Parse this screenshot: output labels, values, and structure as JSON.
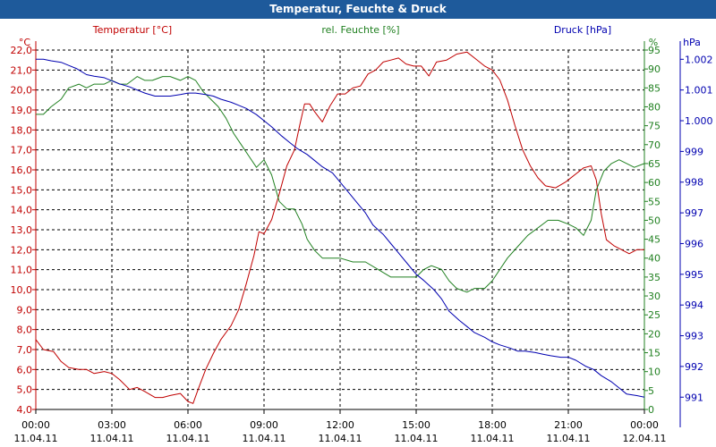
{
  "window": {
    "title": "Temperatur, Feuchte & Druck"
  },
  "colors": {
    "temp": "#c00000",
    "hum": "#208020",
    "press": "#0000b0",
    "grid": "#000000",
    "axis_text": "#000000"
  },
  "chart_data": {
    "type": "line",
    "title": "Temperatur, Feuchte & Druck",
    "x_ticks": [
      {
        "h": 0,
        "time": "00:00",
        "date": "11.04.11"
      },
      {
        "h": 3,
        "time": "03:00",
        "date": "11.04.11"
      },
      {
        "h": 6,
        "time": "06:00",
        "date": "11.04.11"
      },
      {
        "h": 9,
        "time": "09:00",
        "date": "11.04.11"
      },
      {
        "h": 12,
        "time": "12:00",
        "date": "11.04.11"
      },
      {
        "h": 15,
        "time": "15:00",
        "date": "11.04.11"
      },
      {
        "h": 18,
        "time": "18:00",
        "date": "11.04.11"
      },
      {
        "h": 21,
        "time": "21:00",
        "date": "11.04.11"
      },
      {
        "h": 24,
        "time": "00:00",
        "date": "12.04.11"
      }
    ],
    "axes": {
      "temp": {
        "label": "Temperatur [°C]",
        "unit": "°C",
        "min": 4.0,
        "max": 22.0,
        "ticks": [
          "4,0",
          "5,0",
          "6,0",
          "7,0",
          "8,0",
          "9,0",
          "10,0",
          "11,0",
          "12,0",
          "13,0",
          "14,0",
          "15,0",
          "16,0",
          "17,0",
          "18,0",
          "19,0",
          "20,0",
          "21,0",
          "22,0"
        ]
      },
      "hum": {
        "label": "rel. Feuchte [%]",
        "unit": "%",
        "min": 0,
        "max": 95,
        "ticks": [
          "0",
          "5",
          "10",
          "15",
          "20",
          "25",
          "30",
          "35",
          "40",
          "45",
          "50",
          "55",
          "60",
          "65",
          "70",
          "75",
          "80",
          "85",
          "90",
          "95"
        ]
      },
      "press": {
        "label": "Druck [hPa]",
        "unit": "hPa",
        "min": 990.6,
        "max": 1002.3,
        "ticks": [
          "991",
          "992",
          "993",
          "994",
          "995",
          "996",
          "997",
          "998",
          "999",
          "1.000",
          "1.001",
          "1.002"
        ]
      }
    },
    "series": [
      {
        "name": "Temperatur",
        "axis": "temp",
        "points": [
          [
            0,
            7.5
          ],
          [
            0.3,
            7.0
          ],
          [
            0.7,
            6.9
          ],
          [
            1.0,
            6.4
          ],
          [
            1.3,
            6.1
          ],
          [
            1.7,
            6.0
          ],
          [
            2.0,
            6.0
          ],
          [
            2.3,
            5.8
          ],
          [
            2.7,
            5.9
          ],
          [
            3.0,
            5.8
          ],
          [
            3.3,
            5.5
          ],
          [
            3.7,
            5.0
          ],
          [
            4.0,
            5.1
          ],
          [
            4.3,
            4.9
          ],
          [
            4.7,
            4.6
          ],
          [
            5.0,
            4.6
          ],
          [
            5.3,
            4.7
          ],
          [
            5.7,
            4.8
          ],
          [
            6.0,
            4.4
          ],
          [
            6.2,
            4.3
          ],
          [
            6.4,
            5.0
          ],
          [
            6.7,
            6.0
          ],
          [
            7.0,
            6.8
          ],
          [
            7.3,
            7.5
          ],
          [
            7.7,
            8.2
          ],
          [
            8.0,
            9.0
          ],
          [
            8.3,
            10.3
          ],
          [
            8.6,
            11.7
          ],
          [
            8.8,
            12.9
          ],
          [
            9.0,
            12.8
          ],
          [
            9.3,
            13.5
          ],
          [
            9.6,
            14.8
          ],
          [
            9.9,
            16.2
          ],
          [
            10.2,
            17.0
          ],
          [
            10.4,
            18.2
          ],
          [
            10.6,
            19.3
          ],
          [
            10.8,
            19.3
          ],
          [
            11.0,
            18.9
          ],
          [
            11.3,
            18.4
          ],
          [
            11.6,
            19.2
          ],
          [
            11.9,
            19.8
          ],
          [
            12.2,
            19.8
          ],
          [
            12.5,
            20.1
          ],
          [
            12.8,
            20.2
          ],
          [
            13.1,
            20.8
          ],
          [
            13.4,
            21.0
          ],
          [
            13.7,
            21.4
          ],
          [
            14.0,
            21.5
          ],
          [
            14.3,
            21.6
          ],
          [
            14.6,
            21.3
          ],
          [
            14.9,
            21.2
          ],
          [
            15.2,
            21.2
          ],
          [
            15.5,
            20.7
          ],
          [
            15.8,
            21.4
          ],
          [
            16.2,
            21.5
          ],
          [
            16.6,
            21.8
          ],
          [
            17.0,
            21.9
          ],
          [
            17.3,
            21.6
          ],
          [
            17.7,
            21.2
          ],
          [
            18.0,
            21.0
          ],
          [
            18.3,
            20.5
          ],
          [
            18.6,
            19.5
          ],
          [
            18.9,
            18.2
          ],
          [
            19.2,
            17.0
          ],
          [
            19.5,
            16.2
          ],
          [
            19.8,
            15.6
          ],
          [
            20.1,
            15.2
          ],
          [
            20.5,
            15.1
          ],
          [
            20.9,
            15.4
          ],
          [
            21.3,
            15.8
          ],
          [
            21.6,
            16.1
          ],
          [
            21.9,
            16.2
          ],
          [
            22.1,
            15.5
          ],
          [
            22.3,
            13.8
          ],
          [
            22.5,
            12.5
          ],
          [
            22.8,
            12.2
          ],
          [
            23.1,
            12.0
          ],
          [
            23.4,
            11.8
          ],
          [
            23.7,
            12.0
          ],
          [
            24.0,
            12.0
          ]
        ]
      },
      {
        "name": "rel. Feuchte",
        "axis": "hum",
        "points": [
          [
            0,
            78
          ],
          [
            0.3,
            78
          ],
          [
            0.6,
            80
          ],
          [
            1.0,
            82
          ],
          [
            1.3,
            85
          ],
          [
            1.7,
            86
          ],
          [
            2.0,
            85
          ],
          [
            2.3,
            86
          ],
          [
            2.7,
            86
          ],
          [
            3.0,
            87
          ],
          [
            3.3,
            86
          ],
          [
            3.6,
            86
          ],
          [
            4.0,
            88
          ],
          [
            4.3,
            87
          ],
          [
            4.6,
            87
          ],
          [
            5.0,
            88
          ],
          [
            5.3,
            88
          ],
          [
            5.7,
            87
          ],
          [
            6.0,
            88
          ],
          [
            6.3,
            87
          ],
          [
            6.6,
            84
          ],
          [
            6.9,
            82
          ],
          [
            7.2,
            80
          ],
          [
            7.5,
            77
          ],
          [
            7.8,
            73
          ],
          [
            8.1,
            70
          ],
          [
            8.4,
            67
          ],
          [
            8.7,
            64
          ],
          [
            9.0,
            66
          ],
          [
            9.3,
            62
          ],
          [
            9.6,
            55
          ],
          [
            9.9,
            53
          ],
          [
            10.2,
            53
          ],
          [
            10.5,
            49
          ],
          [
            10.7,
            45
          ],
          [
            11.0,
            42
          ],
          [
            11.3,
            40
          ],
          [
            11.6,
            40
          ],
          [
            12.0,
            40
          ],
          [
            12.5,
            39
          ],
          [
            13.0,
            39
          ],
          [
            13.5,
            37
          ],
          [
            14.0,
            35
          ],
          [
            14.5,
            35
          ],
          [
            15.0,
            35
          ],
          [
            15.3,
            37
          ],
          [
            15.6,
            38
          ],
          [
            16.0,
            37
          ],
          [
            16.3,
            34
          ],
          [
            16.6,
            32
          ],
          [
            17.0,
            31
          ],
          [
            17.3,
            32
          ],
          [
            17.7,
            32
          ],
          [
            18.0,
            34
          ],
          [
            18.3,
            37
          ],
          [
            18.6,
            40
          ],
          [
            19.0,
            43
          ],
          [
            19.4,
            46
          ],
          [
            19.8,
            48
          ],
          [
            20.2,
            50
          ],
          [
            20.6,
            50
          ],
          [
            21.0,
            49
          ],
          [
            21.3,
            48
          ],
          [
            21.6,
            46
          ],
          [
            21.9,
            50
          ],
          [
            22.1,
            58
          ],
          [
            22.4,
            63
          ],
          [
            22.7,
            65
          ],
          [
            23.0,
            66
          ],
          [
            23.3,
            65
          ],
          [
            23.6,
            64
          ],
          [
            24.0,
            65
          ]
        ]
      },
      {
        "name": "Druck",
        "axis": "press",
        "points": [
          [
            0,
            1002.0
          ],
          [
            0.3,
            1002.0
          ],
          [
            0.6,
            1001.95
          ],
          [
            1.0,
            1001.9
          ],
          [
            1.3,
            1001.8
          ],
          [
            1.6,
            1001.7
          ],
          [
            2.0,
            1001.5
          ],
          [
            2.3,
            1001.45
          ],
          [
            2.7,
            1001.4
          ],
          [
            3.0,
            1001.3
          ],
          [
            3.3,
            1001.2
          ],
          [
            3.7,
            1001.1
          ],
          [
            4.0,
            1001.0
          ],
          [
            4.3,
            1000.9
          ],
          [
            4.7,
            1000.8
          ],
          [
            5.0,
            1000.8
          ],
          [
            5.3,
            1000.8
          ],
          [
            5.7,
            1000.85
          ],
          [
            6.0,
            1000.9
          ],
          [
            6.3,
            1000.9
          ],
          [
            6.7,
            1000.85
          ],
          [
            7.0,
            1000.8
          ],
          [
            7.3,
            1000.7
          ],
          [
            7.7,
            1000.6
          ],
          [
            8.0,
            1000.5
          ],
          [
            8.3,
            1000.4
          ],
          [
            8.7,
            1000.2
          ],
          [
            9.0,
            1000.0
          ],
          [
            9.3,
            999.8
          ],
          [
            9.7,
            999.5
          ],
          [
            10.0,
            999.3
          ],
          [
            10.3,
            999.1
          ],
          [
            10.7,
            998.9
          ],
          [
            11.0,
            998.7
          ],
          [
            11.3,
            998.5
          ],
          [
            11.7,
            998.3
          ],
          [
            12.0,
            998.0
          ],
          [
            12.3,
            997.7
          ],
          [
            12.7,
            997.3
          ],
          [
            13.0,
            997.0
          ],
          [
            13.3,
            996.6
          ],
          [
            13.7,
            996.3
          ],
          [
            14.0,
            996.0
          ],
          [
            14.3,
            995.7
          ],
          [
            14.7,
            995.3
          ],
          [
            15.0,
            995.0
          ],
          [
            15.3,
            994.8
          ],
          [
            15.7,
            994.5
          ],
          [
            16.0,
            994.2
          ],
          [
            16.3,
            993.8
          ],
          [
            16.7,
            993.5
          ],
          [
            17.0,
            993.3
          ],
          [
            17.3,
            993.1
          ],
          [
            17.7,
            992.95
          ],
          [
            18.0,
            992.8
          ],
          [
            18.3,
            992.7
          ],
          [
            18.7,
            992.6
          ],
          [
            19.0,
            992.5
          ],
          [
            19.3,
            992.5
          ],
          [
            19.7,
            992.45
          ],
          [
            20.0,
            992.4
          ],
          [
            20.3,
            992.35
          ],
          [
            20.7,
            992.3
          ],
          [
            21.0,
            992.3
          ],
          [
            21.3,
            992.2
          ],
          [
            21.7,
            992.0
          ],
          [
            22.0,
            991.9
          ],
          [
            22.3,
            991.7
          ],
          [
            22.7,
            991.5
          ],
          [
            23.0,
            991.3
          ],
          [
            23.3,
            991.1
          ],
          [
            23.7,
            991.05
          ],
          [
            24.0,
            991.0
          ]
        ]
      }
    ]
  }
}
